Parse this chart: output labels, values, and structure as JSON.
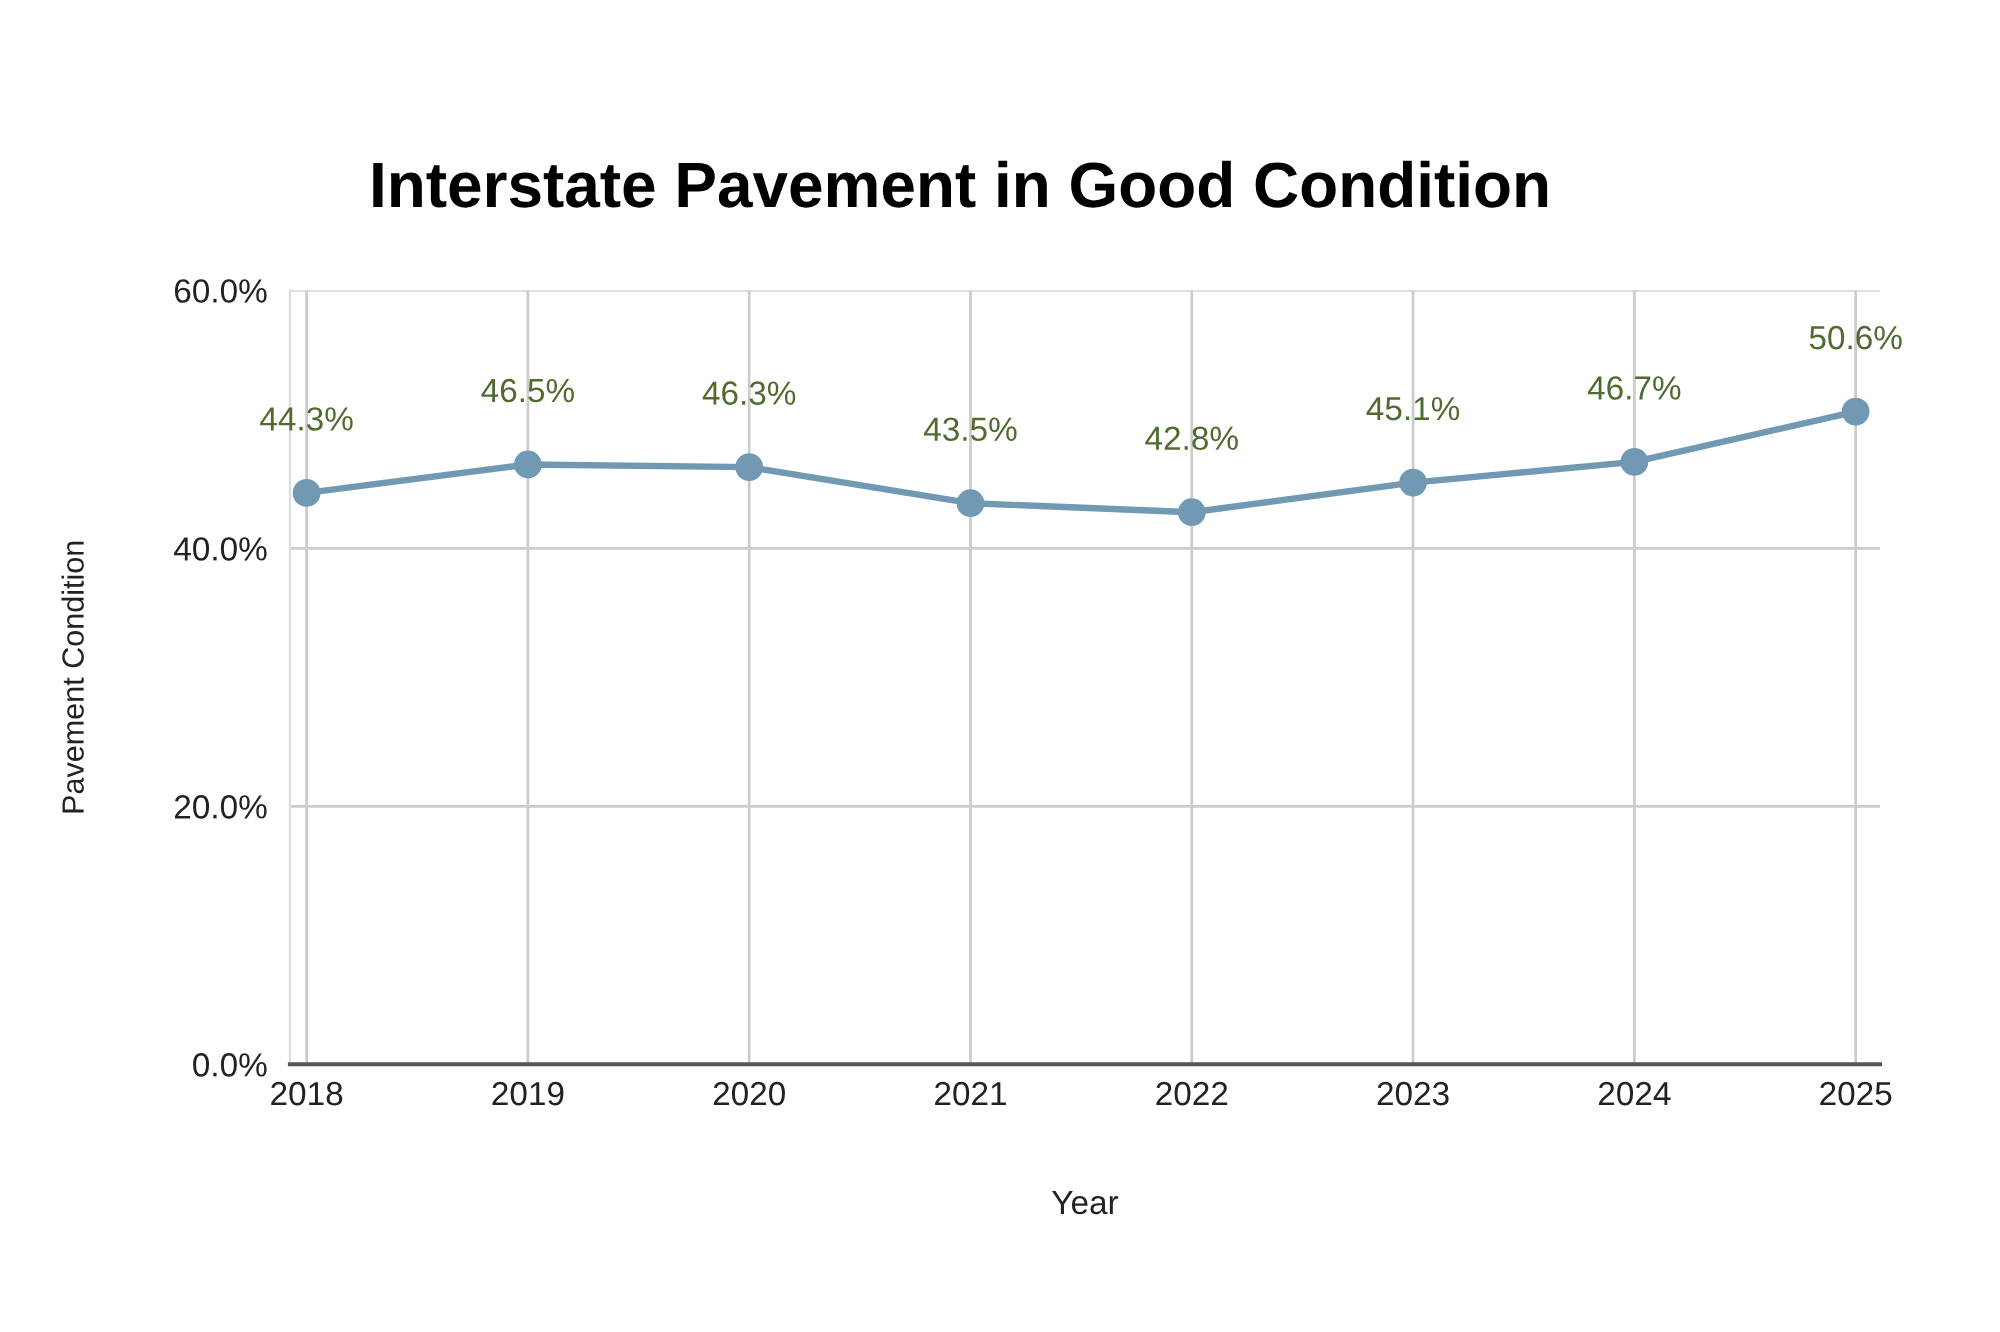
{
  "chart_data": {
    "type": "line",
    "title": "Interstate Pavement in Good Condition",
    "xlabel": "Year",
    "ylabel": "Pavement Condition",
    "categories": [
      "2018",
      "2019",
      "2020",
      "2021",
      "2022",
      "2023",
      "2024",
      "2025"
    ],
    "series": [
      {
        "color": "#7199b3",
        "values": [
          44.3,
          46.5,
          46.3,
          43.5,
          42.8,
          45.1,
          46.7,
          50.6
        ],
        "value_labels": [
          "44.3%",
          "46.5%",
          "46.3%",
          "43.5%",
          "42.8%",
          "45.1%",
          "46.7%",
          "50.6%"
        ]
      }
    ],
    "ylim": [
      0,
      60
    ],
    "yticks": [
      {
        "value": 0,
        "label": "0.0%"
      },
      {
        "value": 20,
        "label": "20.0%"
      },
      {
        "value": 40,
        "label": "40.0%"
      },
      {
        "value": 60,
        "label": "60.0%"
      }
    ],
    "grid": true,
    "marker": "circle",
    "line_style": "solid"
  }
}
